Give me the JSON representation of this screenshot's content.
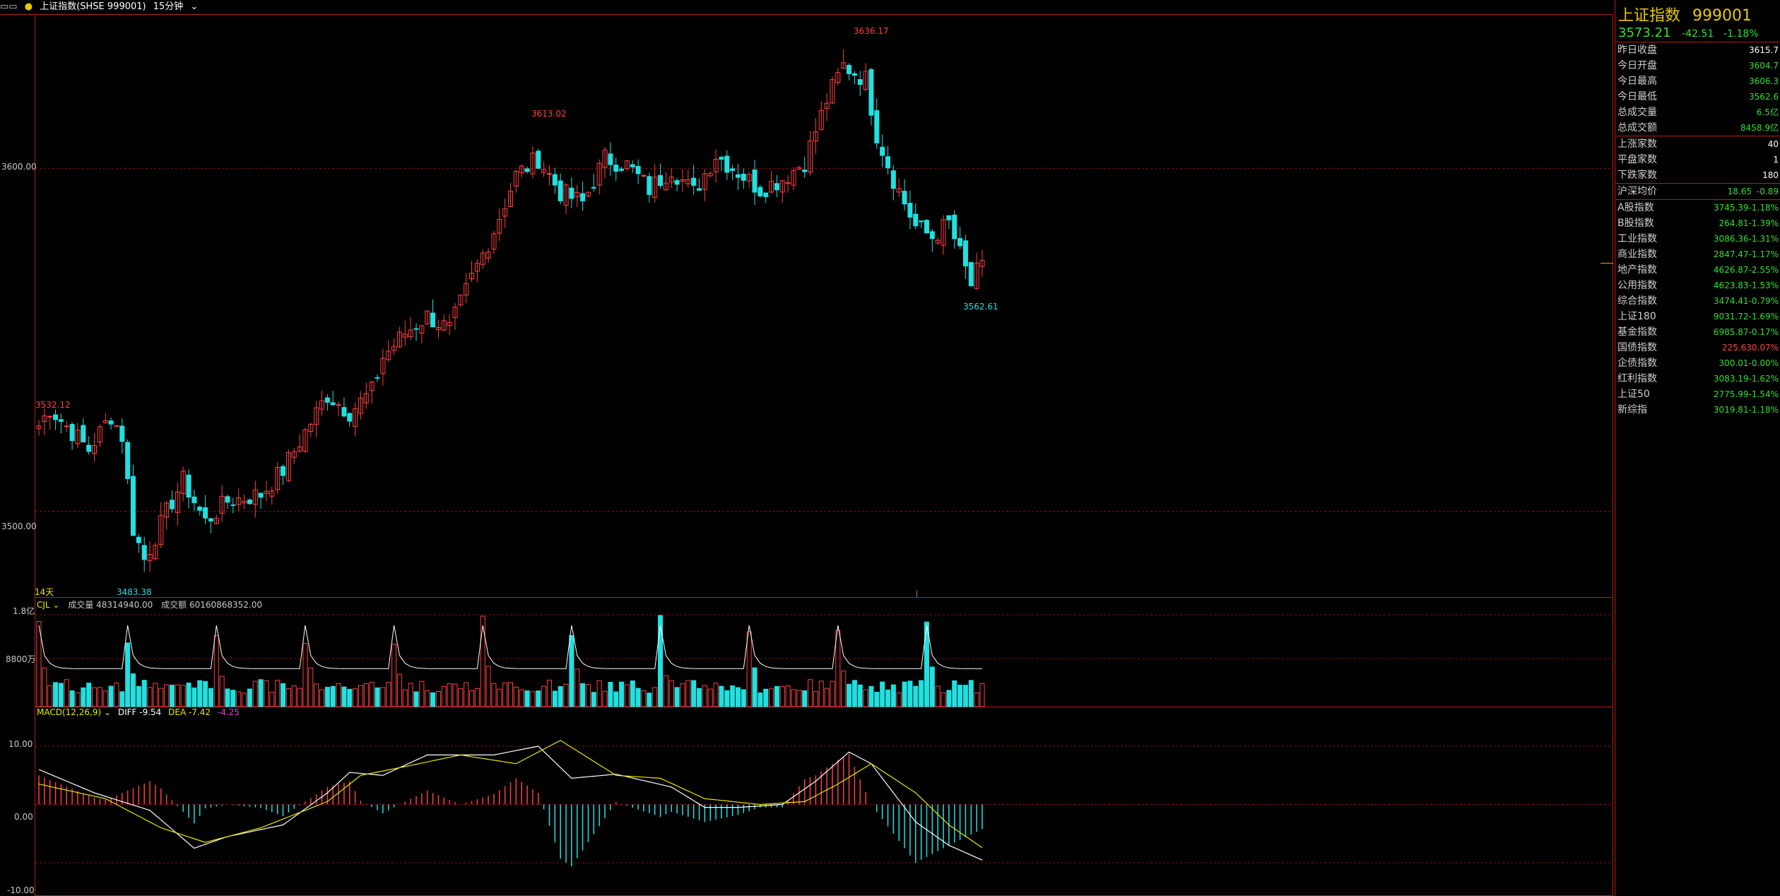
{
  "topbar": {
    "mode_icon": "layout-icon",
    "symbol": "上证指数(SHSE 999001)",
    "period": "15分钟"
  },
  "price_chart": {
    "y_ticks": [
      "3600.00",
      "3500.00"
    ],
    "high_label": "3636.17",
    "low_label": "3483.38",
    "left_high_label": "3532.12",
    "mid_high_label": "3613.02",
    "last_low_label": "3562.61",
    "day_label": "14天"
  },
  "volume_chart": {
    "indicator": "CJL",
    "vol_text": "成交量 48314940.00",
    "amount_text": "成交额 60160868352.00",
    "y_ticks": [
      "1.8亿",
      "8800万"
    ]
  },
  "macd_chart": {
    "indicator": "MACD(12,26,9)",
    "diff_text": "DIFF -9.54",
    "dea_text": "DEA -7.42",
    "macd_text": "-4.25",
    "y_ticks": [
      "10.00",
      "0.00",
      "-10.00"
    ]
  },
  "panel": {
    "title": "上证指数",
    "code": "999001",
    "price": "3573.21",
    "change": "-42.51",
    "change_pct": "-1.18%",
    "stats": [
      {
        "label": "昨日收盘",
        "value": "3615.7",
        "color": "#ffffff"
      },
      {
        "label": "今日开盘",
        "value": "3604.7",
        "color": "#30e030"
      },
      {
        "label": "今日最高",
        "value": "3606.3",
        "color": "#30e030"
      },
      {
        "label": "今日最低",
        "value": "3562.6",
        "color": "#30e030"
      },
      {
        "label": "总成交量",
        "value": "6.5亿",
        "color": "#30e030"
      },
      {
        "label": "总成交额",
        "value": "8458.9亿",
        "color": "#30e030"
      }
    ],
    "breadth": [
      {
        "label": "上涨家数",
        "value": "40",
        "color": "#ffffff"
      },
      {
        "label": "平盘家数",
        "value": "1",
        "color": "#ffffff"
      },
      {
        "label": "下跌家数",
        "value": "180",
        "color": "#ffffff"
      }
    ],
    "avg": {
      "label": "沪深均价",
      "value": "18.65",
      "pct": "-0.89"
    },
    "indices": [
      {
        "label": "A股指数",
        "value": "3745.39",
        "pct": "-1.18%",
        "color": "#30e030"
      },
      {
        "label": "B股指数",
        "value": "264.81",
        "pct": "-1.39%",
        "color": "#30e030"
      },
      {
        "label": "工业指数",
        "value": "3086.36",
        "pct": "-1.31%",
        "color": "#30e030"
      },
      {
        "label": "商业指数",
        "value": "2847.47",
        "pct": "-1.17%",
        "color": "#30e030"
      },
      {
        "label": "地产指数",
        "value": "4626.87",
        "pct": "-2.55%",
        "color": "#30e030"
      },
      {
        "label": "公用指数",
        "value": "4623.83",
        "pct": "-1.53%",
        "color": "#30e030"
      },
      {
        "label": "综合指数",
        "value": "3474.41",
        "pct": "-0.79%",
        "color": "#30e030"
      },
      {
        "label": "上证180",
        "value": "9031.72",
        "pct": "-1.69%",
        "color": "#30e030"
      },
      {
        "label": "基金指数",
        "value": "6985.87",
        "pct": "-0.17%",
        "color": "#30e030"
      },
      {
        "label": "国债指数",
        "value": "225.63",
        "pct": "0.07%",
        "color": "#ff4040"
      },
      {
        "label": "企债指数",
        "value": "300.01",
        "pct": "-0.00%",
        "color": "#30e030"
      },
      {
        "label": "红利指数",
        "value": "3083.19",
        "pct": "-1.62%",
        "color": "#30e030"
      },
      {
        "label": "上证50",
        "value": "2775.99",
        "pct": "-1.54%",
        "color": "#30e030"
      },
      {
        "label": "新综指",
        "value": "3019.81",
        "pct": "-1.18%",
        "color": "#30e030"
      }
    ]
  },
  "colors": {
    "up": "#ff4040",
    "down": "#20e0e0",
    "grid": "#8a1010",
    "macd_diff": "#ffffff",
    "macd_dea": "#e8e800",
    "vol_ma": "#ffffff"
  },
  "chart_data": {
    "type": "candlestick",
    "price_range": [
      3475,
      3645
    ],
    "volume_range": [
      0,
      180000000
    ],
    "macd_range": [
      -10,
      10
    ],
    "anchors": [
      [
        0,
        3525,
        3532.12
      ],
      [
        2,
        3530,
        3533
      ],
      [
        9,
        3518,
        3522
      ],
      [
        13,
        3528,
        3531
      ],
      [
        15,
        3522,
        3528
      ],
      [
        17,
        3495,
        3500
      ],
      [
        19,
        3486,
        3483.38
      ],
      [
        24,
        3503,
        3509
      ],
      [
        26,
        3509,
        3510
      ],
      [
        30,
        3497,
        3497
      ],
      [
        34,
        3503,
        3504
      ],
      [
        40,
        3505,
        3507
      ],
      [
        44,
        3512,
        3513
      ],
      [
        49,
        3526,
        3528
      ],
      [
        52,
        3534,
        3538
      ],
      [
        56,
        3529,
        3532
      ],
      [
        60,
        3535,
        3540
      ],
      [
        62,
        3545,
        3551
      ],
      [
        66,
        3552,
        3554
      ],
      [
        70,
        3557,
        3560
      ],
      [
        74,
        3553,
        3556
      ],
      [
        78,
        3568,
        3572
      ],
      [
        82,
        3582,
        3588
      ],
      [
        86,
        3598,
        3600
      ],
      [
        90,
        3603,
        3613.02
      ],
      [
        94,
        3593,
        3590
      ],
      [
        98,
        3590,
        3589
      ],
      [
        102,
        3603,
        3608
      ],
      [
        106,
        3601,
        3603
      ],
      [
        110,
        3594,
        3597
      ],
      [
        114,
        3600,
        3603
      ],
      [
        118,
        3593,
        3595
      ],
      [
        122,
        3604,
        3606
      ],
      [
        126,
        3599,
        3598
      ],
      [
        130,
        3594,
        3598
      ],
      [
        134,
        3597,
        3600
      ],
      [
        138,
        3602,
        3608
      ],
      [
        142,
        3620,
        3625
      ],
      [
        145,
        3630,
        3636.17
      ],
      [
        149,
        3626,
        3630
      ],
      [
        151,
        3610,
        3612
      ],
      [
        154,
        3597,
        3600
      ],
      [
        156,
        3590,
        3592
      ],
      [
        158,
        3583,
        3586
      ],
      [
        161,
        3580,
        3583
      ],
      [
        164,
        3584,
        3586
      ],
      [
        166,
        3575,
        3578
      ],
      [
        168,
        3566,
        3562.61
      ],
      [
        170,
        3573.21,
        3575
      ]
    ]
  }
}
